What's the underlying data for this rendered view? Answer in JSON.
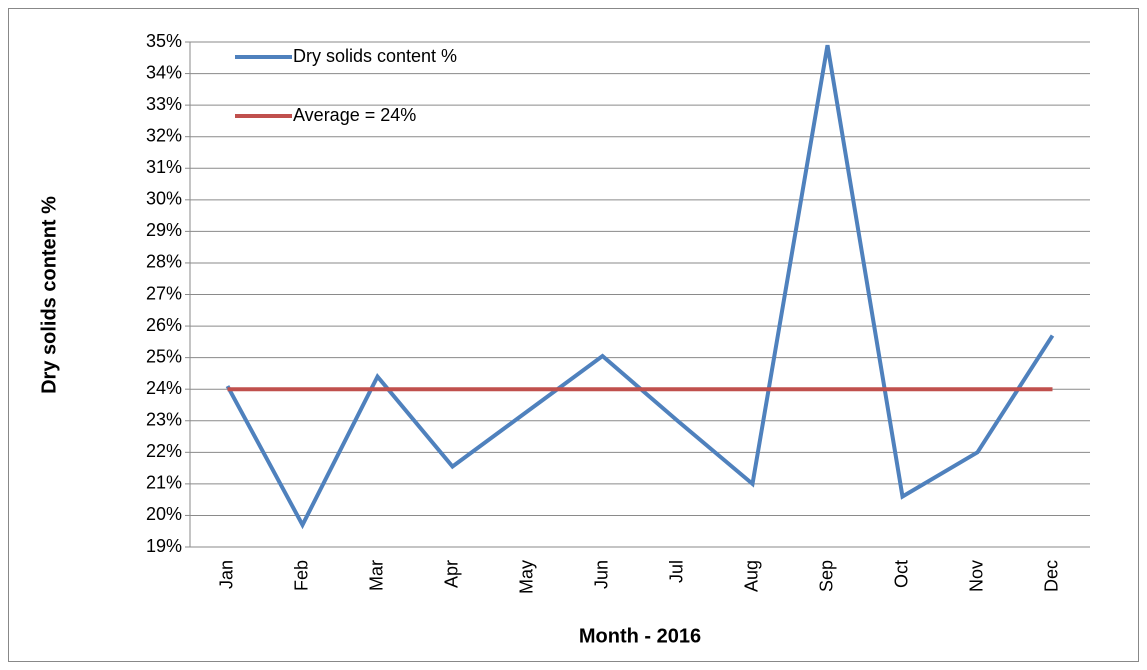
{
  "chart_data": {
    "type": "line",
    "x_label": "Month - 2016",
    "y_label": "Dry solids content %",
    "categories": [
      "Jan",
      "Feb",
      "Mar",
      "Apr",
      "May",
      "Jun",
      "Jul",
      "Aug",
      "Sep",
      "Oct",
      "Nov",
      "Dec"
    ],
    "series": [
      {
        "name": "Dry solids content %",
        "color": "#4f81bd",
        "values": [
          24.1,
          19.7,
          24.4,
          21.55,
          23.3,
          25.05,
          23.0,
          21.0,
          34.9,
          20.6,
          22.0,
          25.7
        ]
      },
      {
        "name": "Average = 24%",
        "color": "#c0504d",
        "values": [
          24,
          24,
          24,
          24,
          24,
          24,
          24,
          24,
          24,
          24,
          24,
          24
        ]
      }
    ],
    "ylim": [
      19,
      35
    ],
    "yticks": [
      {
        "value": 19,
        "label": "19%"
      },
      {
        "value": 20,
        "label": "20%"
      },
      {
        "value": 21,
        "label": "21%"
      },
      {
        "value": 22,
        "label": "22%"
      },
      {
        "value": 23,
        "label": "23%"
      },
      {
        "value": 24,
        "label": "24%"
      },
      {
        "value": 25,
        "label": "25%"
      },
      {
        "value": 26,
        "label": "26%"
      },
      {
        "value": 27,
        "label": "27%"
      },
      {
        "value": 28,
        "label": "28%"
      },
      {
        "value": 29,
        "label": "29%"
      },
      {
        "value": 30,
        "label": "30%"
      },
      {
        "value": 31,
        "label": "31%"
      },
      {
        "value": 32,
        "label": "32%"
      },
      {
        "value": 33,
        "label": "33%"
      },
      {
        "value": 34,
        "label": "34%"
      },
      {
        "value": 35,
        "label": "35%"
      }
    ],
    "grid": true,
    "legend": "top-left"
  }
}
